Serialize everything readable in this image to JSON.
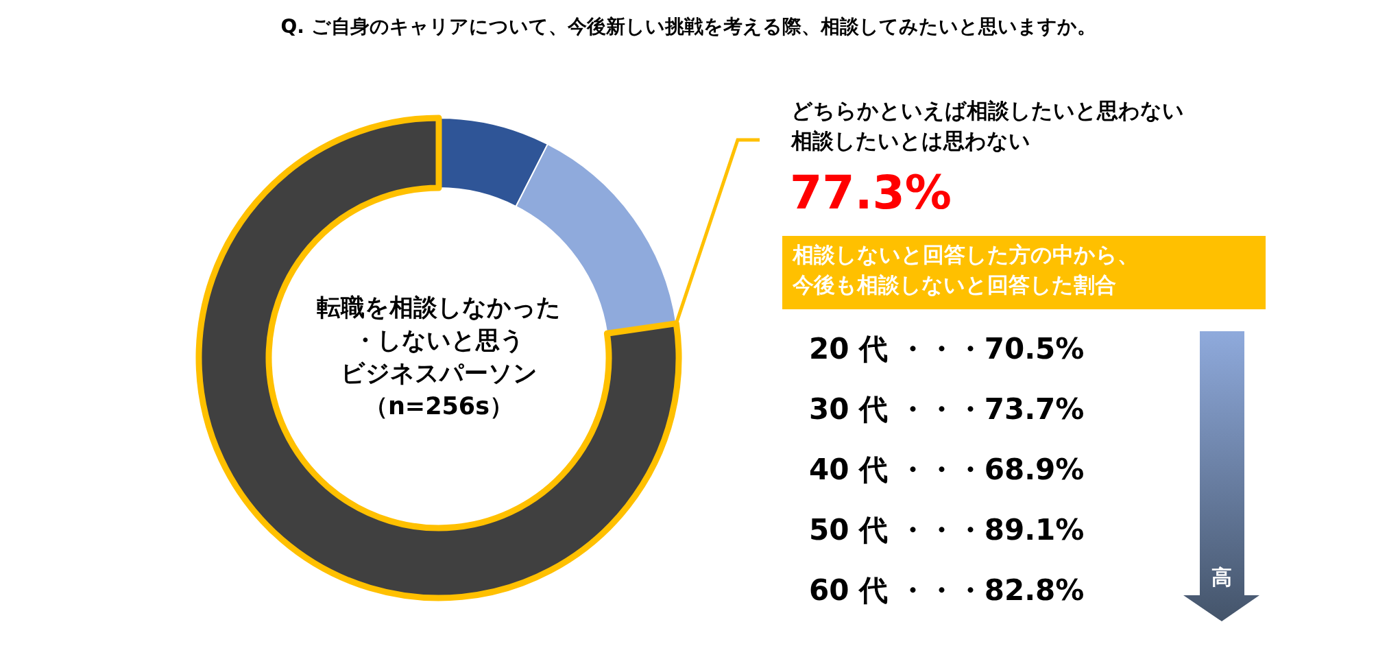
{
  "chart_data": [
    {
      "type": "donut",
      "title": "Q. ご自身のキャリアについて、今後新しい挑戦を考える際、相談してみたいと思いますか。",
      "categories": [
        null,
        null,
        null
      ],
      "values": [
        7.5,
        15.2,
        77.3
      ],
      "colors": [
        "#2f5597",
        "#8faadc",
        "#404040"
      ],
      "value_labels": [
        null,
        null,
        "77.3%"
      ],
      "annotations": [
        "どちらかといえば相談したいと思わない",
        "相談したいとは思わない",
        "転職を相談しなかった",
        "・しないと思う",
        "ビジネスパーソン",
        "（n=256s）"
      ]
    },
    {
      "type": "other",
      "title": "相談しないと回答した方の中から、今後も相談しないと回答した割合",
      "annotations": [
        "20 代 ・・・70.5%",
        "30 代 ・・・73.7%",
        "40 代 ・・・68.9%",
        "50 代 ・・・89.1%",
        "60 代 ・・・82.8%",
        "高"
      ]
    }
  ]
}
